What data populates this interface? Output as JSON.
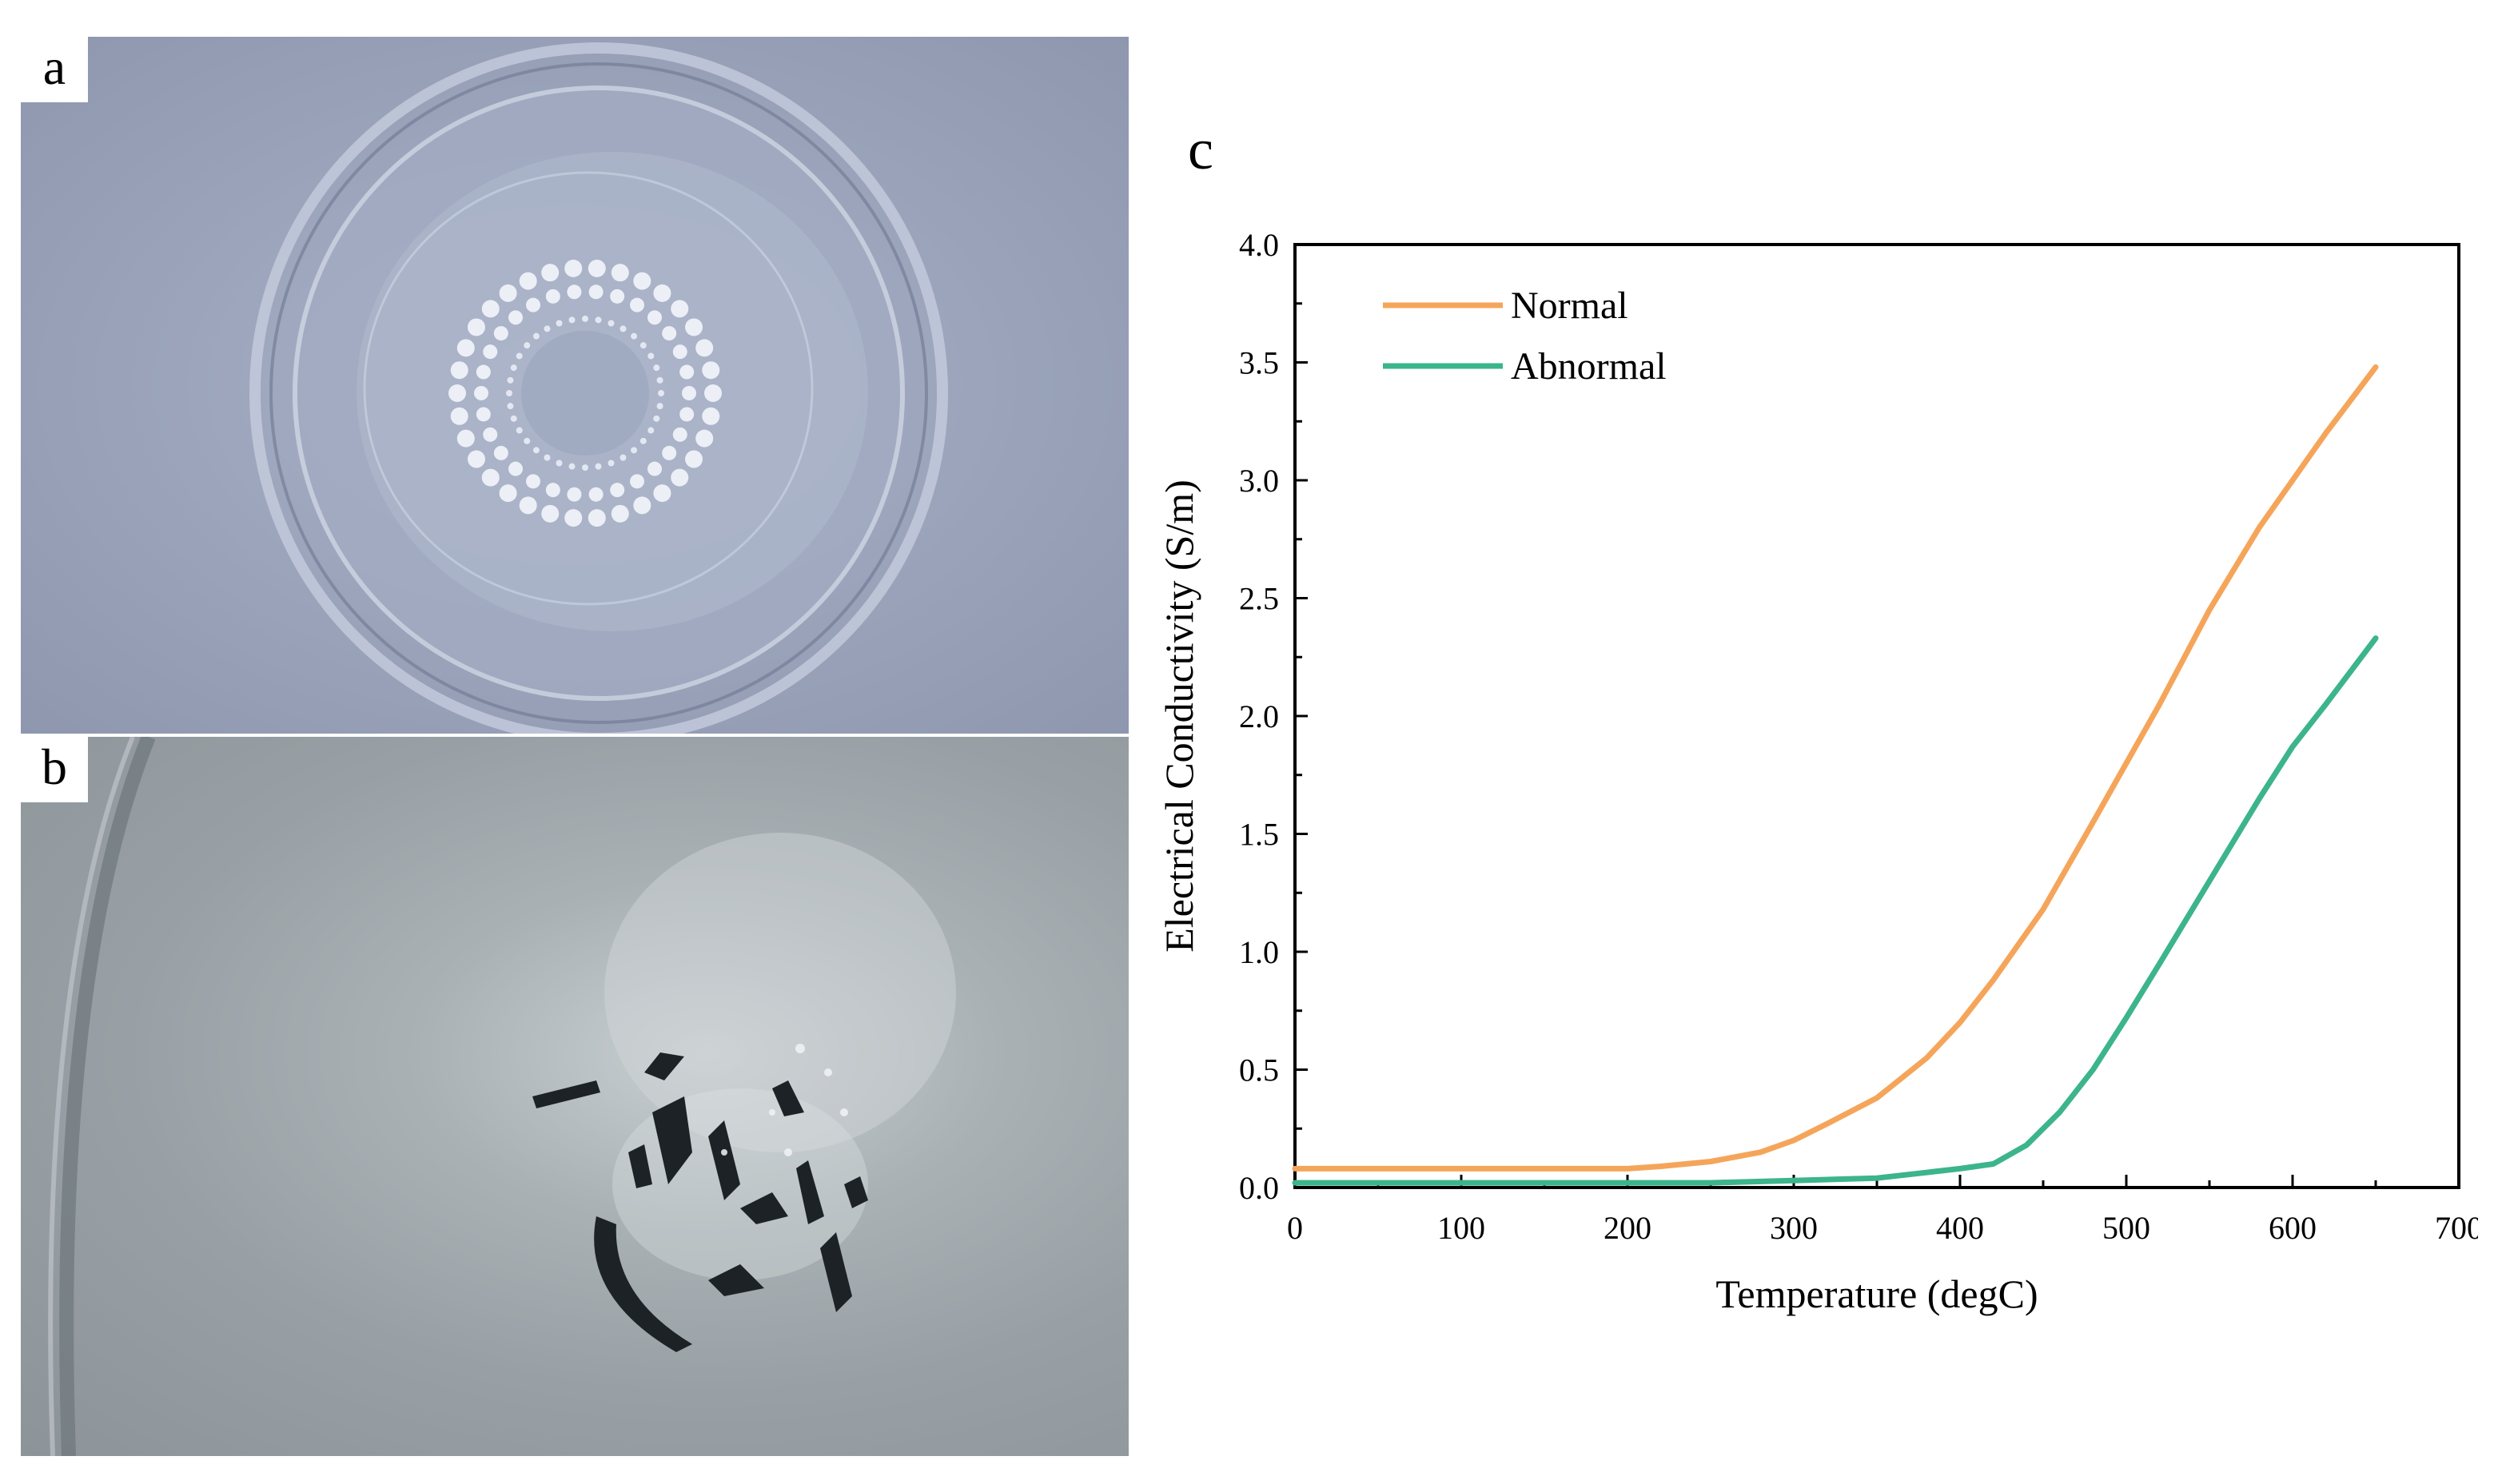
{
  "panels": {
    "a": {
      "label": "a"
    },
    "b": {
      "label": "b"
    },
    "c": {
      "label": "c"
    }
  },
  "chart_data": {
    "type": "line",
    "xlabel": "Temperature (degC)",
    "ylabel": "Electrical Conductivity (S/m)",
    "xlim": [
      0,
      700
    ],
    "ylim": [
      0,
      4.0
    ],
    "xticks": [
      "0",
      "100",
      "200",
      "300",
      "400",
      "500",
      "600",
      "700"
    ],
    "yticks": [
      "0.0",
      "0.5",
      "1.0",
      "1.5",
      "2.0",
      "2.5",
      "3.0",
      "3.5",
      "4.0"
    ],
    "grid": false,
    "legend_position": "top-left",
    "series": [
      {
        "name": "Normal",
        "color": "#f5a55a",
        "x": [
          0,
          100,
          200,
          220,
          250,
          280,
          300,
          320,
          350,
          380,
          400,
          420,
          450,
          480,
          500,
          520,
          550,
          580,
          600,
          620,
          650
        ],
        "y": [
          0.08,
          0.08,
          0.08,
          0.09,
          0.11,
          0.15,
          0.2,
          0.27,
          0.38,
          0.55,
          0.7,
          0.88,
          1.18,
          1.55,
          1.8,
          2.05,
          2.45,
          2.8,
          3.0,
          3.2,
          3.48
        ]
      },
      {
        "name": "Abnormal",
        "color": "#3cb48c",
        "x": [
          0,
          100,
          200,
          250,
          300,
          350,
          400,
          420,
          440,
          460,
          480,
          500,
          520,
          550,
          580,
          600,
          620,
          650
        ],
        "y": [
          0.02,
          0.02,
          0.02,
          0.02,
          0.03,
          0.04,
          0.08,
          0.1,
          0.18,
          0.32,
          0.5,
          0.72,
          0.95,
          1.3,
          1.65,
          1.87,
          2.05,
          2.33
        ]
      }
    ]
  }
}
